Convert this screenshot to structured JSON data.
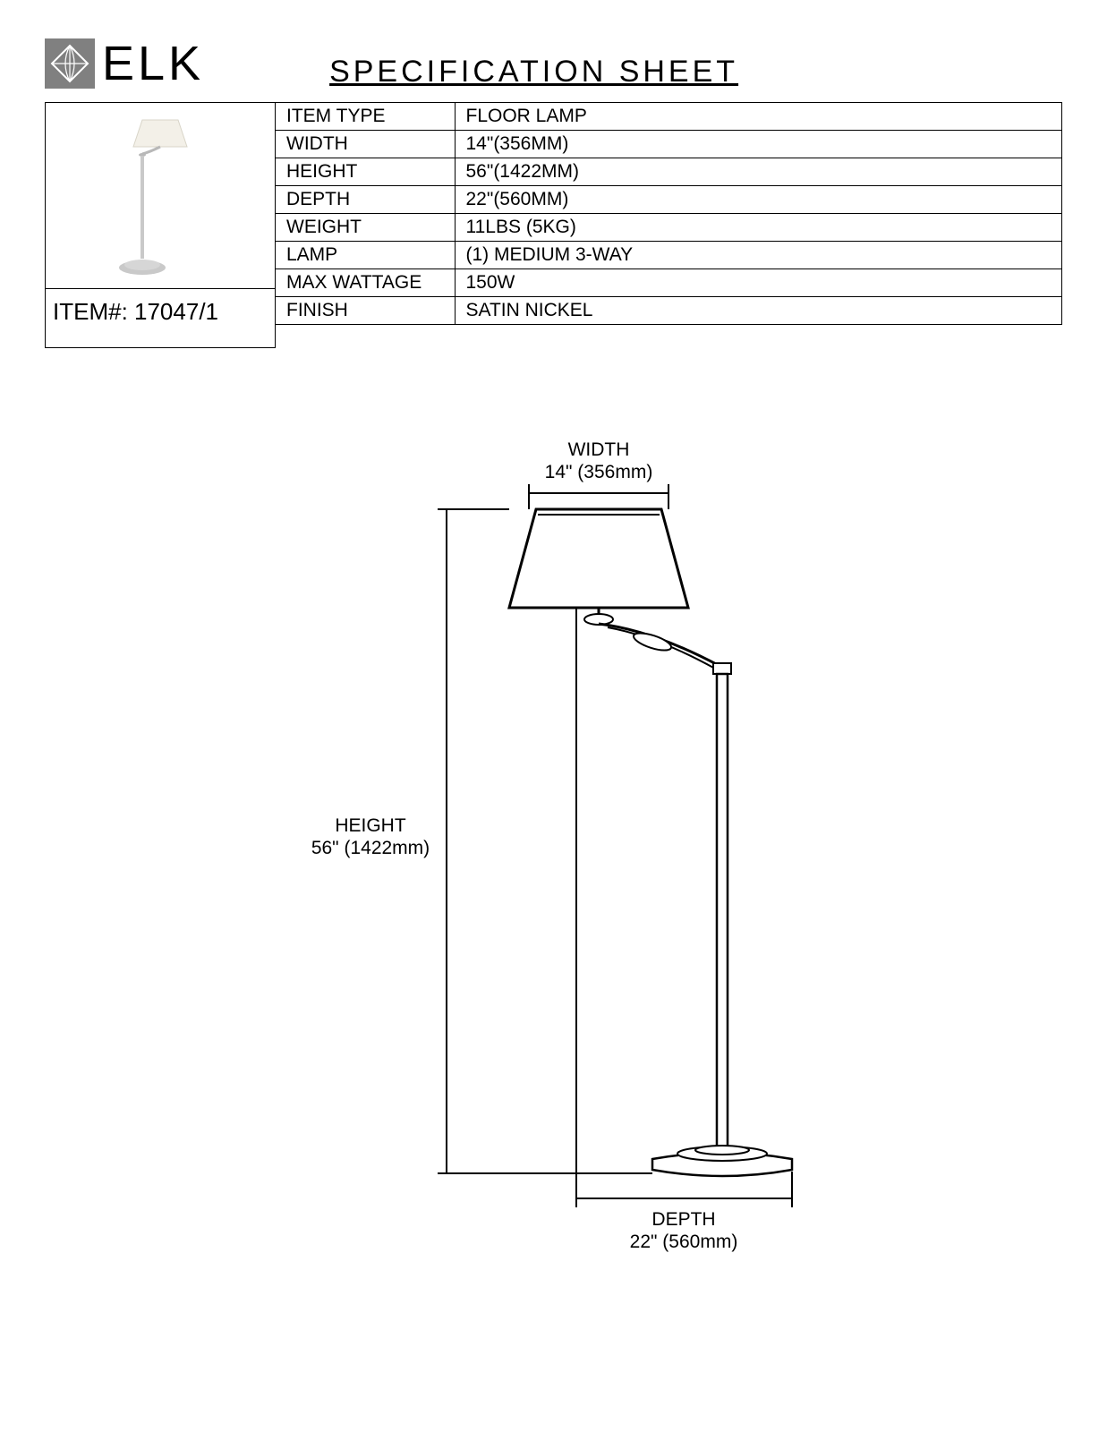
{
  "brand": "ELK",
  "sheet_title": "SPECIFICATION  SHEET",
  "item_number_label": "ITEM#: 17047/1",
  "spec_rows": [
    {
      "label": "ITEM TYPE",
      "value": "FLOOR LAMP"
    },
    {
      "label": "WIDTH",
      "value": "14\"(356MM)"
    },
    {
      "label": "HEIGHT",
      "value": "56\"(1422MM)"
    },
    {
      "label": "DEPTH",
      "value": "22\"(560MM)"
    },
    {
      "label": "WEIGHT",
      "value": "11LBS (5KG)"
    },
    {
      "label": "LAMP",
      "value": "(1) MEDIUM  3-WAY"
    },
    {
      "label": "MAX WATTAGE",
      "value": "150W"
    },
    {
      "label": "FINISH",
      "value": "SATIN NICKEL"
    }
  ],
  "diagram": {
    "width_label": "WIDTH",
    "width_value": "14\" (356mm)",
    "height_label": "HEIGHT",
    "height_value": "56\" (1422mm)",
    "depth_label": "DEPTH",
    "depth_value": "22\" (560mm)",
    "line_color": "#000000",
    "shade_fill": "#ffffff",
    "photo_shade_fill": "#f3f0e8",
    "photo_metal_fill": "#c9c9c9"
  }
}
